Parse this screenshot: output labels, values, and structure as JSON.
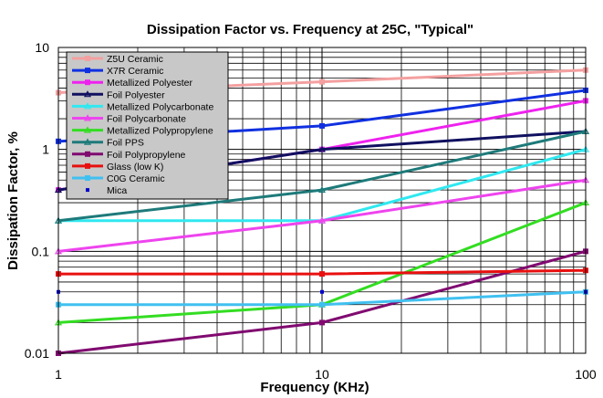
{
  "chart_data": {
    "type": "line",
    "title": "Dissipation Factor vs. Frequency at 25C, \"Typical\"",
    "xlabel": "Frequency (KHz)",
    "ylabel": "Dissipation Factor, %",
    "x_scale": "log",
    "y_scale": "log",
    "xlim": [
      1,
      100
    ],
    "ylim": [
      0.01,
      10
    ],
    "x": [
      1,
      10,
      100
    ],
    "x_tick_labels": [
      "1",
      "10",
      "100"
    ],
    "y_tick_labels": [
      "0.01",
      "0.1",
      "1",
      "10"
    ],
    "grid": true,
    "legend_position": "top-left",
    "series": [
      {
        "name": "Z5U Ceramic",
        "values": [
          3.6,
          4.6,
          6.0
        ],
        "color": "#f4a0a0",
        "marker": "square",
        "line": true
      },
      {
        "name": "X7R Ceramic",
        "values": [
          1.2,
          1.7,
          3.8
        ],
        "color": "#1030e0",
        "marker": "square",
        "line": true
      },
      {
        "name": "Metallized Polyester",
        "values": [
          0.4,
          1.0,
          3.0
        ],
        "color": "#ee22ee",
        "marker": "square",
        "line": true
      },
      {
        "name": "Foil Polyester",
        "values": [
          0.4,
          1.0,
          1.5
        ],
        "color": "#101060",
        "marker": "triangle",
        "line": true
      },
      {
        "name": "Metallized Polycarbonate",
        "values": [
          0.2,
          0.2,
          1.0
        ],
        "color": "#30e8f0",
        "marker": "triangle",
        "line": true
      },
      {
        "name": "Foil Polycarbonate",
        "values": [
          0.1,
          0.2,
          0.5
        ],
        "color": "#ee44ee",
        "marker": "triangle",
        "line": true
      },
      {
        "name": "Metallized Polypropylene",
        "values": [
          0.02,
          0.03,
          0.3
        ],
        "color": "#33dd22",
        "marker": "triangle",
        "line": true
      },
      {
        "name": "Foil PPS",
        "values": [
          0.2,
          0.4,
          1.5
        ],
        "color": "#1e7a7a",
        "marker": "triangle",
        "line": true
      },
      {
        "name": "Foil Polypropylene",
        "values": [
          0.01,
          0.02,
          0.1
        ],
        "color": "#800a70",
        "marker": "square",
        "line": true
      },
      {
        "name": "Glass (low K)",
        "values": [
          0.06,
          0.06,
          0.065
        ],
        "color": "#e81010",
        "marker": "square",
        "line": true
      },
      {
        "name": "C0G Ceramic",
        "values": [
          0.03,
          0.03,
          0.04
        ],
        "color": "#40c0f0",
        "marker": "square",
        "line": true
      },
      {
        "name": "Mica",
        "values": [
          0.04,
          0.04,
          0.04
        ],
        "color": "#0000cc",
        "marker": "square",
        "line": false
      }
    ]
  }
}
